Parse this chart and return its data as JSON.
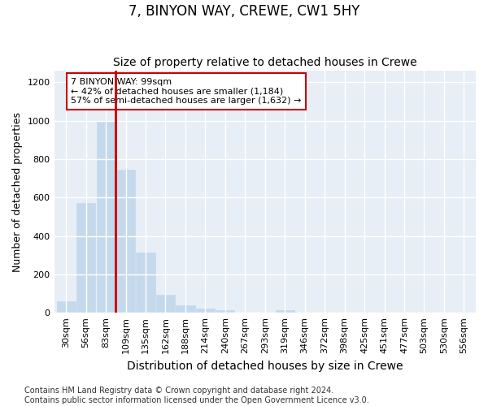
{
  "title": "7, BINYON WAY, CREWE, CW1 5HY",
  "subtitle": "Size of property relative to detached houses in Crewe",
  "xlabel": "Distribution of detached houses by size in Crewe",
  "ylabel": "Number of detached properties",
  "bar_color": "#c5d9ed",
  "highlight_bar_color": "#cc0000",
  "background_color": "#e8eef6",
  "categories": [
    "30sqm",
    "56sqm",
    "83sqm",
    "109sqm",
    "135sqm",
    "162sqm",
    "188sqm",
    "214sqm",
    "240sqm",
    "267sqm",
    "293sqm",
    "319sqm",
    "346sqm",
    "372sqm",
    "398sqm",
    "425sqm",
    "451sqm",
    "477sqm",
    "503sqm",
    "530sqm",
    "556sqm"
  ],
  "values": [
    60,
    570,
    1000,
    745,
    315,
    95,
    38,
    22,
    13,
    0,
    0,
    13,
    0,
    0,
    0,
    0,
    0,
    0,
    0,
    0,
    0
  ],
  "vline_x": 2.5,
  "annotation_line1": "7 BINYON WAY: 99sqm",
  "annotation_line2": "← 42% of detached houses are smaller (1,184)",
  "annotation_line3": "57% of semi-detached houses are larger (1,632) →",
  "ylim": [
    0,
    1260
  ],
  "yticks": [
    0,
    200,
    400,
    600,
    800,
    1000,
    1200
  ],
  "footer": "Contains HM Land Registry data © Crown copyright and database right 2024.\nContains public sector information licensed under the Open Government Licence v3.0.",
  "title_fontsize": 12,
  "subtitle_fontsize": 10,
  "ylabel_fontsize": 9,
  "xlabel_fontsize": 10,
  "tick_fontsize": 8,
  "annotation_fontsize": 8,
  "footer_fontsize": 7
}
